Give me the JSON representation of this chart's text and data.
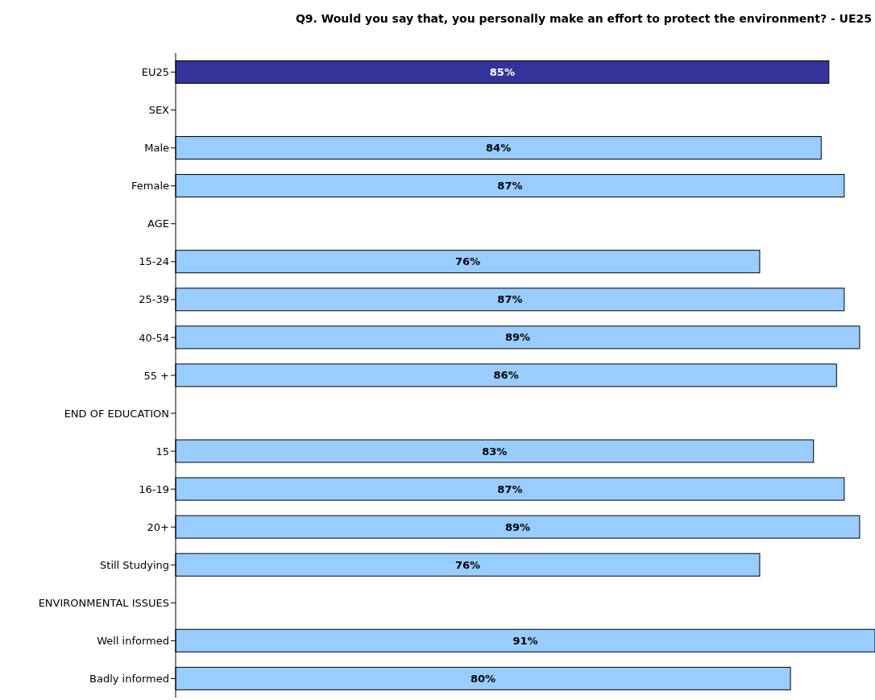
{
  "chart_data": {
    "type": "bar",
    "orientation": "horizontal",
    "title": "Q9. Would you say that, you personally make an effort to protect the environment? - UE25",
    "categories": [
      "EU25",
      "SEX",
      "Male",
      "Female",
      "AGE",
      "15-24",
      "25-39",
      "40-54",
      "55 +",
      "END OF EDUCATION",
      "15",
      "16-19",
      "20+",
      "Still Studying",
      "ENVIRONMENTAL ISSUES",
      "Well informed",
      "Badly informed"
    ],
    "values": [
      85,
      null,
      84,
      87,
      null,
      76,
      87,
      89,
      86,
      null,
      83,
      87,
      89,
      76,
      null,
      91,
      80
    ],
    "colors": [
      "#333399",
      "#99ccff",
      "#99ccff",
      "#99ccff",
      "#99ccff",
      "#99ccff",
      "#99ccff",
      "#99ccff",
      "#99ccff",
      "#99ccff",
      "#99ccff",
      "#99ccff",
      "#99ccff",
      "#99ccff",
      "#99ccff",
      "#99ccff",
      "#99ccff"
    ],
    "value_labels": [
      "85%",
      null,
      "84%",
      "87%",
      null,
      "76%",
      "87%",
      "89%",
      "86%",
      null,
      "83%",
      "87%",
      "89%",
      "76%",
      null,
      "91%",
      "80%"
    ],
    "grid": false,
    "legend": false
  }
}
